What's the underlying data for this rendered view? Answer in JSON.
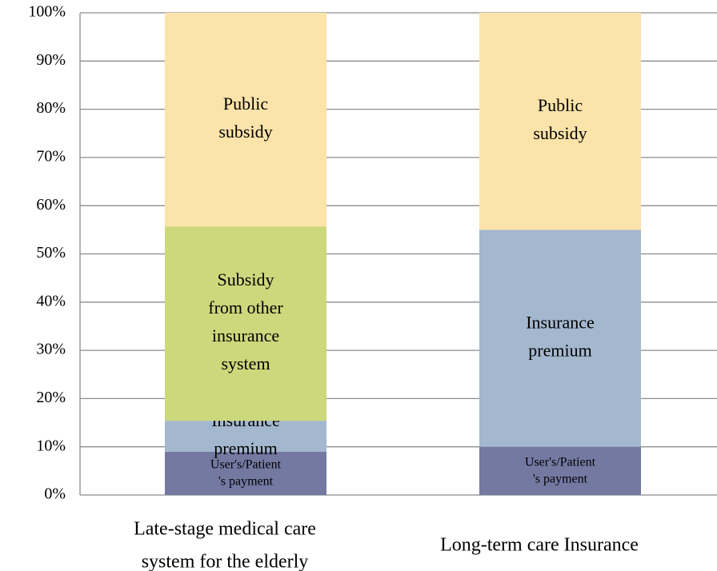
{
  "chart_data": {
    "type": "stacked_bar",
    "categories": [
      "Late-stage medical care\nsystem for the elderly",
      "Long-term care Insurance"
    ],
    "series": [
      {
        "name": "User's/Patient\n's payment",
        "color": "#7479a2",
        "values": [
          9,
          10
        ]
      },
      {
        "name": "Insurance\npremium",
        "color": "#a3b7ce",
        "values": [
          6.4,
          45
        ]
      },
      {
        "name": "Subsidy\nfrom other\ninsurance\nsystem",
        "color": "#ccd87c",
        "values": [
          40.3,
          0
        ]
      },
      {
        "name": "Public\nsubsidy",
        "color": "#fbe3a9",
        "values": [
          44.3,
          45
        ]
      }
    ],
    "ylim": [
      0,
      100
    ],
    "yticks": [
      {
        "value": 0,
        "label": "0%"
      },
      {
        "value": 10,
        "label": "10%"
      },
      {
        "value": 20,
        "label": "20%"
      },
      {
        "value": 30,
        "label": "30%"
      },
      {
        "value": 40,
        "label": "40%"
      },
      {
        "value": 50,
        "label": "50%"
      },
      {
        "value": 60,
        "label": "60%"
      },
      {
        "value": 70,
        "label": "70%"
      },
      {
        "value": 80,
        "label": "80%"
      },
      {
        "value": 90,
        "label": "90%"
      },
      {
        "value": 100,
        "label": "100%"
      }
    ],
    "grid": true
  }
}
